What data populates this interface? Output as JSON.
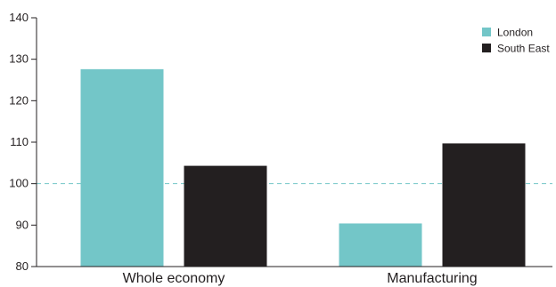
{
  "chart_data": {
    "type": "bar",
    "categories": [
      "Whole economy",
      "Manufacturing"
    ],
    "series": [
      {
        "name": "London",
        "color": "#73c6c8",
        "values": [
          127.6,
          90.4
        ]
      },
      {
        "name": "South East",
        "color": "#231f20",
        "values": [
          104.3,
          109.7
        ]
      }
    ],
    "ylim": [
      80,
      140
    ],
    "yticks": [
      80,
      90,
      100,
      110,
      120,
      130,
      140
    ],
    "reference_line": {
      "value": 100,
      "color": "#73c6c8",
      "style": "dashed"
    },
    "legend_position": "top-right",
    "grid": false,
    "title": "",
    "xlabel": "",
    "ylabel": ""
  }
}
